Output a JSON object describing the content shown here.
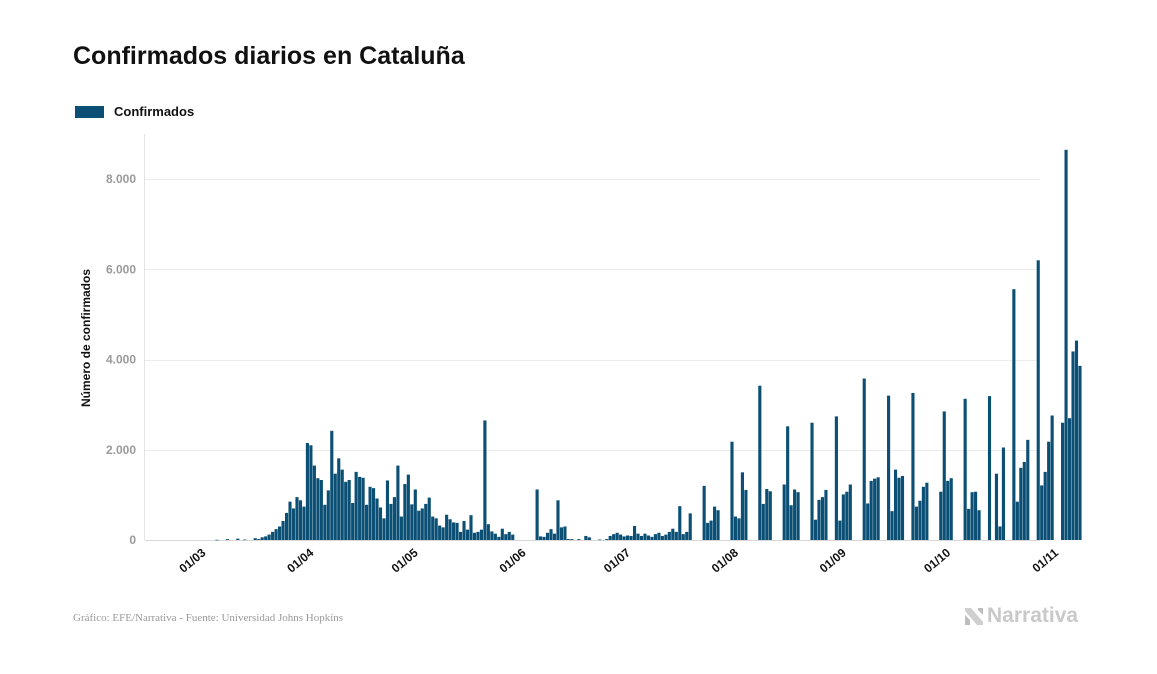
{
  "chart_data": {
    "type": "bar",
    "title": "Confirmados diarios en Cataluña",
    "legend": [
      "Confirmados"
    ],
    "ylabel": "Número de confirmados",
    "xlabel": "",
    "ylim": [
      0,
      9000
    ],
    "yticks": [
      0,
      2000,
      4000,
      6000,
      8000
    ],
    "ytick_labels": [
      "0",
      "2.000",
      "4.000",
      "6.000",
      "8.000"
    ],
    "xtick_labels": [
      "01/03",
      "01/04",
      "01/05",
      "01/06",
      "01/07",
      "01/08",
      "01/09",
      "01/10",
      "01/11"
    ],
    "color": "#0b4f75",
    "grid": true,
    "start_day_offset": -2,
    "values": [
      0,
      0,
      0,
      0,
      0,
      0,
      0,
      0,
      5,
      0,
      0,
      20,
      0,
      0,
      30,
      0,
      10,
      0,
      0,
      40,
      20,
      60,
      80,
      120,
      180,
      240,
      300,
      420,
      600,
      850,
      700,
      950,
      880,
      740,
      2150,
      2100,
      1650,
      1370,
      1330,
      780,
      1100,
      2420,
      1470,
      1810,
      1560,
      1290,
      1330,
      820,
      1510,
      1400,
      1380,
      780,
      1180,
      1150,
      920,
      720,
      480,
      1320,
      800,
      950,
      1650,
      520,
      1240,
      1450,
      790,
      1120,
      650,
      700,
      800,
      940,
      520,
      480,
      320,
      280,
      560,
      460,
      390,
      380,
      180,
      420,
      230,
      550,
      160,
      180,
      230,
      2650,
      350,
      190,
      140,
      70,
      250,
      130,
      180,
      120,
      0,
      0,
      0,
      0,
      0,
      0,
      1120,
      80,
      70,
      160,
      240,
      140,
      880,
      280,
      300,
      20,
      20,
      0,
      20,
      0,
      90,
      60,
      0,
      0,
      10,
      0,
      20,
      90,
      130,
      160,
      120,
      80,
      100,
      90,
      310,
      140,
      90,
      140,
      100,
      70,
      130,
      160,
      90,
      120,
      180,
      250,
      180,
      750,
      130,
      180,
      590,
      0,
      0,
      0,
      1200,
      380,
      430,
      740,
      660,
      0,
      0,
      0,
      2180,
      520,
      480,
      1500,
      1110,
      0,
      0,
      0,
      3420,
      800,
      1130,
      1080,
      0,
      0,
      0,
      1230,
      2520,
      770,
      1120,
      1060,
      0,
      0,
      0,
      2600,
      450,
      890,
      950,
      1110,
      0,
      0,
      2740,
      430,
      1010,
      1070,
      1230,
      0,
      0,
      0,
      3580,
      810,
      1310,
      1360,
      1390,
      0,
      0,
      3200,
      640,
      1560,
      1380,
      1420,
      0,
      0,
      3260,
      740,
      870,
      1180,
      1270,
      0,
      0,
      0,
      1070,
      2850,
      1310,
      1370,
      0,
      0,
      0,
      3130,
      690,
      1060,
      1070,
      660,
      0,
      0,
      3190,
      0,
      1470,
      300,
      2050,
      0,
      0,
      5560,
      850,
      1600,
      1730,
      2220,
      0,
      0,
      6200,
      1210,
      1510,
      2180,
      2760,
      0,
      0,
      2600,
      8650,
      2700,
      4180,
      4420,
      3860
    ]
  },
  "footer": {
    "source": "Gráfico: EFE/Narrativa - Fuente: Universidad Johns Hopkins",
    "brand": "Narrativa"
  }
}
